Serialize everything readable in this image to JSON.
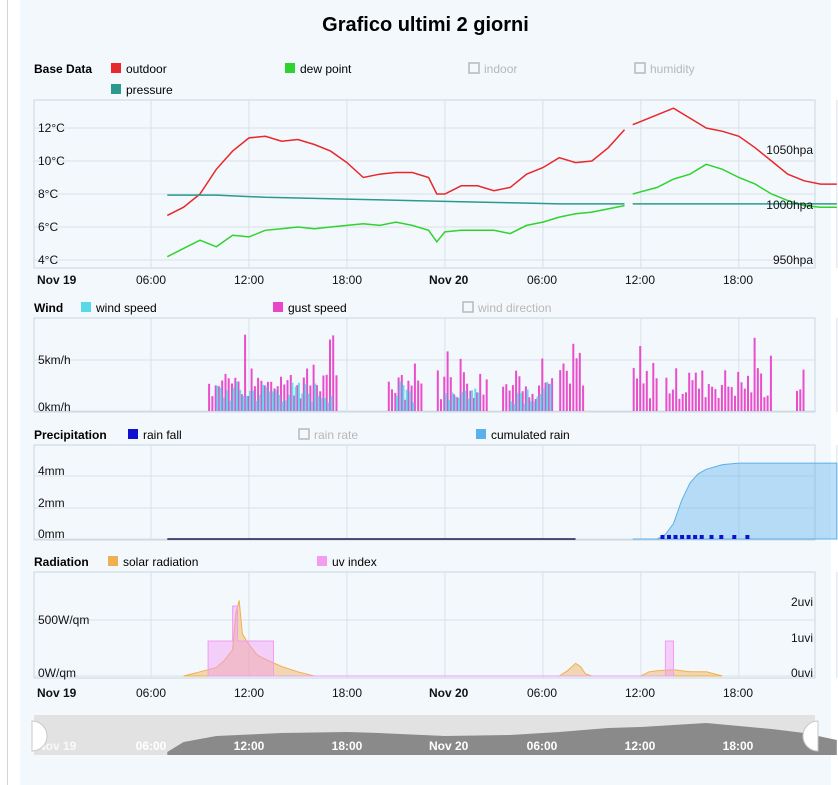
{
  "title": "Grafico ultimi 2 giorni",
  "x_ticks": [
    "Nov 19",
    "06:00",
    "12:00",
    "18:00",
    "Nov 20",
    "06:00",
    "12:00",
    "18:00"
  ],
  "base": {
    "section": "Base Data",
    "legend": [
      {
        "label": "outdoor",
        "color": "#e8282a",
        "on": true
      },
      {
        "label": "dew point",
        "color": "#2fd32f",
        "on": true
      },
      {
        "label": "indoor",
        "color": "#b8b8b8",
        "on": false
      },
      {
        "label": "humidity",
        "color": "#b8b8b8",
        "on": false
      },
      {
        "label": "pressure",
        "color": "#2a9a8e",
        "on": true
      }
    ],
    "y_ticks": [
      "12°C",
      "10°C",
      "8°C",
      "6°C",
      "4°C"
    ],
    "y_ticks_right": [
      "1050hpa",
      "1000hpa",
      "950hpa"
    ]
  },
  "wind": {
    "section": "Wind",
    "legend": [
      {
        "label": "wind speed",
        "color": "#5ad8ea",
        "on": true
      },
      {
        "label": "gust speed",
        "color": "#e845c8",
        "on": true
      },
      {
        "label": "wind direction",
        "color": "#b8b8b8",
        "on": false
      }
    ],
    "y_ticks": [
      "5km/h",
      "0km/h"
    ]
  },
  "precip": {
    "section": "Precipitation",
    "legend": [
      {
        "label": "rain fall",
        "color": "#1010d0",
        "on": true
      },
      {
        "label": "rain rate",
        "color": "#b8b8b8",
        "on": false
      },
      {
        "label": "cumulated rain",
        "color": "#5ab0ea",
        "on": true
      }
    ],
    "y_ticks": [
      "4mm",
      "2mm",
      "0mm"
    ]
  },
  "radiation": {
    "section": "Radiation",
    "legend": [
      {
        "label": "solar radiation",
        "color": "#f0b050",
        "on": true
      },
      {
        "label": "uv index",
        "color": "#f29cf2",
        "on": true
      }
    ],
    "y_ticks": [
      "500W/qm",
      "0W/qm"
    ],
    "y_ticks_right": [
      "2uvi",
      "1uvi",
      "0uvi"
    ]
  },
  "chart_data": [
    {
      "type": "line",
      "title": "Base Data",
      "x_unit": "hours since Nov 19 00:00",
      "ylim": [
        4,
        13.5
      ],
      "series": [
        {
          "name": "outdoor",
          "color": "#e8282a",
          "unit": "°C",
          "segments": [
            [
              [
                7,
                6.7
              ],
              [
                8,
                7.2
              ],
              [
                9,
                8
              ],
              [
                10,
                9.5
              ],
              [
                11,
                10.6
              ],
              [
                12,
                11.4
              ],
              [
                13,
                11.5
              ],
              [
                14,
                11.2
              ],
              [
                15,
                11.3
              ],
              [
                16,
                11.0
              ],
              [
                17,
                10.6
              ],
              [
                18,
                9.9
              ],
              [
                19,
                9.0
              ],
              [
                20,
                9.2
              ],
              [
                21,
                9.3
              ],
              [
                22,
                9.3
              ],
              [
                23,
                9.0
              ],
              [
                23.5,
                8.0
              ],
              [
                24,
                8.0
              ],
              [
                25,
                8.5
              ],
              [
                26,
                8.5
              ],
              [
                27,
                8.2
              ],
              [
                28,
                8.4
              ],
              [
                29,
                9.2
              ],
              [
                30,
                9.6
              ],
              [
                31,
                10.2
              ],
              [
                32,
                9.9
              ],
              [
                33,
                10.0
              ],
              [
                34,
                10.8
              ],
              [
                35,
                11.9
              ]
            ],
            [
              [
                35.5,
                12.2
              ],
              [
                37,
                12.8
              ],
              [
                38,
                13.2
              ],
              [
                39,
                12.6
              ],
              [
                40,
                12.0
              ],
              [
                41,
                11.8
              ],
              [
                42,
                11.5
              ],
              [
                43,
                10.8
              ],
              [
                44,
                10.0
              ],
              [
                45,
                9.2
              ],
              [
                46,
                8.8
              ],
              [
                47,
                8.6
              ],
              [
                48,
                8.6
              ]
            ]
          ]
        },
        {
          "name": "dew point",
          "color": "#2fd32f",
          "unit": "°C",
          "segments": [
            [
              [
                7,
                4.2
              ],
              [
                8,
                4.7
              ],
              [
                9,
                5.2
              ],
              [
                10,
                4.8
              ],
              [
                11,
                5.5
              ],
              [
                12,
                5.4
              ],
              [
                13,
                5.8
              ],
              [
                14,
                5.9
              ],
              [
                15,
                6.0
              ],
              [
                16,
                5.9
              ],
              [
                17,
                6.0
              ],
              [
                18,
                6.1
              ],
              [
                19,
                6.2
              ],
              [
                20,
                6.1
              ],
              [
                21,
                6.3
              ],
              [
                22,
                6.1
              ],
              [
                23,
                5.8
              ],
              [
                23.5,
                5.1
              ],
              [
                24,
                5.7
              ],
              [
                25,
                5.8
              ],
              [
                26,
                5.8
              ],
              [
                27,
                5.8
              ],
              [
                28,
                5.6
              ],
              [
                29,
                6.1
              ],
              [
                30,
                6.3
              ],
              [
                31,
                6.6
              ],
              [
                32,
                6.8
              ],
              [
                33,
                6.9
              ],
              [
                34,
                7.1
              ],
              [
                35,
                7.3
              ]
            ],
            [
              [
                35.5,
                8.0
              ],
              [
                37,
                8.4
              ],
              [
                38,
                8.9
              ],
              [
                39,
                9.2
              ],
              [
                40,
                9.8
              ],
              [
                41,
                9.5
              ],
              [
                42,
                9.0
              ],
              [
                43,
                8.6
              ],
              [
                44,
                8.0
              ],
              [
                45,
                7.6
              ],
              [
                46,
                7.3
              ],
              [
                47,
                7.2
              ],
              [
                48,
                7.2
              ]
            ]
          ]
        },
        {
          "name": "pressure",
          "color": "#2a9a8e",
          "unit": "hpa",
          "segments": [
            [
              [
                7,
                1009
              ],
              [
                10,
                1009
              ],
              [
                13,
                1007
              ],
              [
                16,
                1006
              ],
              [
                19,
                1005
              ],
              [
                22,
                1004
              ],
              [
                25,
                1003
              ],
              [
                28,
                1002
              ],
              [
                31,
                1001
              ],
              [
                35,
                1001
              ]
            ],
            [
              [
                35.5,
                1001
              ],
              [
                40,
                1001
              ],
              [
                44,
                1001
              ],
              [
                48,
                1001
              ]
            ]
          ]
        }
      ],
      "pressure_ylim": [
        948,
        1060
      ]
    },
    {
      "type": "area",
      "title": "Wind",
      "ylim": [
        0,
        8
      ],
      "series": [
        {
          "name": "gust speed",
          "color": "#e845c8",
          "unit": "km/h",
          "active_windows": [
            [
              9.5,
              17.3
            ],
            [
              20.5,
              22.5
            ],
            [
              23.5,
              26.5
            ],
            [
              27.5,
              30.5
            ],
            [
              31.0,
              32.5
            ],
            [
              35.5,
              37.0
            ],
            [
              37.5,
              44.0
            ],
            [
              45.5,
              46.0
            ]
          ],
          "peak": 8
        },
        {
          "name": "wind speed",
          "color": "#5ad8ea",
          "unit": "km/h",
          "active_windows": [
            [
              10,
              17
            ],
            [
              21,
              22
            ],
            [
              24,
              26
            ],
            [
              28,
              30.5
            ]
          ],
          "peak": 3
        }
      ]
    },
    {
      "type": "area",
      "title": "Precipitation",
      "ylim": [
        0,
        5
      ],
      "series": [
        {
          "name": "cumulated rain",
          "color": "#5ab0ea",
          "unit": "mm",
          "points": [
            [
              35.5,
              0
            ],
            [
              37,
              0
            ],
            [
              37.5,
              0.3
            ],
            [
              38,
              1.0
            ],
            [
              38.5,
              2.5
            ],
            [
              39,
              3.6
            ],
            [
              39.5,
              4.2
            ],
            [
              40,
              4.5
            ],
            [
              41,
              4.8
            ],
            [
              42,
              4.9
            ],
            [
              48,
              4.9
            ]
          ]
        },
        {
          "name": "rain fall",
          "color": "#1010d0",
          "unit": "mm",
          "events": [
            37.2,
            37.6,
            38.0,
            38.4,
            38.8,
            39.2,
            39.6,
            40.2,
            40.8,
            41.6,
            42.4
          ]
        }
      ]
    },
    {
      "type": "area",
      "title": "Radiation",
      "ylim": [
        0,
        800
      ],
      "series": [
        {
          "name": "solar radiation",
          "color": "#f0b050",
          "unit": "W/qm",
          "points": [
            [
              8,
              0
            ],
            [
              9,
              40
            ],
            [
              10,
              80
            ],
            [
              10.5,
              150
            ],
            [
              11,
              250
            ],
            [
              11.2,
              600
            ],
            [
              11.4,
              720
            ],
            [
              11.6,
              400
            ],
            [
              12,
              300
            ],
            [
              12.5,
              200
            ],
            [
              13,
              160
            ],
            [
              14,
              90
            ],
            [
              15,
              40
            ],
            [
              16,
              0
            ],
            [
              31,
              0
            ],
            [
              31.5,
              50
            ],
            [
              32,
              120
            ],
            [
              32.3,
              90
            ],
            [
              32.6,
              20
            ],
            [
              33,
              0
            ],
            [
              36,
              0
            ],
            [
              36.5,
              40
            ],
            [
              37,
              50
            ],
            [
              38,
              60
            ],
            [
              39,
              40
            ],
            [
              40,
              40
            ],
            [
              40.5,
              20
            ],
            [
              41,
              0
            ]
          ]
        },
        {
          "name": "uv index",
          "color": "#f29cf2",
          "unit": "uvi",
          "points": [
            [
              9.5,
              0
            ],
            [
              9.5,
              1
            ],
            [
              11,
              1
            ],
            [
              11,
              2
            ],
            [
              11.3,
              2
            ],
            [
              11.3,
              1
            ],
            [
              13.5,
              1
            ],
            [
              13.5,
              0
            ],
            [
              37.5,
              0
            ],
            [
              37.5,
              1
            ],
            [
              38,
              1
            ],
            [
              38,
              0
            ]
          ]
        }
      ],
      "uv_ylim": [
        0,
        2.7
      ]
    }
  ]
}
